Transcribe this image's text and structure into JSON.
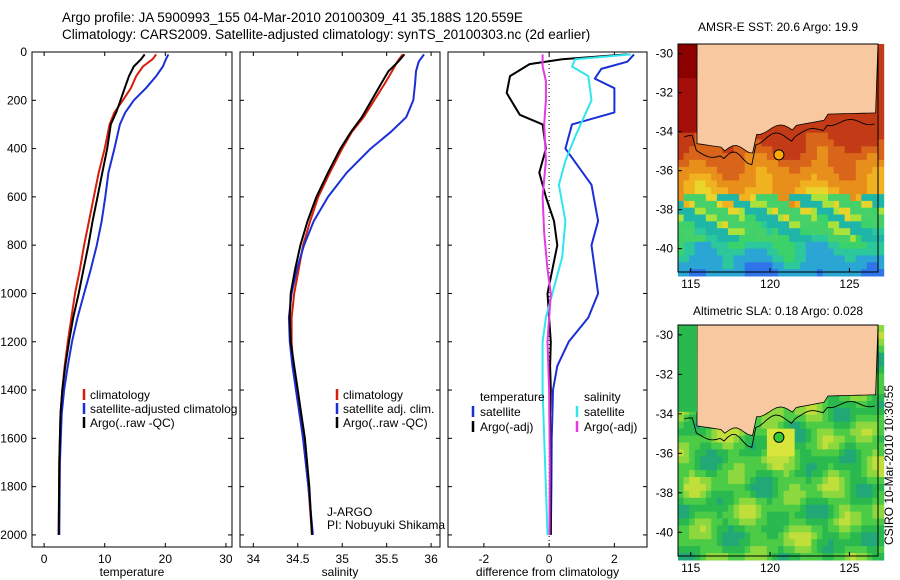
{
  "header": {
    "line1": "Argo profile: JA 5900993_155 04-Mar-2010 20100309_41 35.188S 120.559E",
    "line2": "Climatology: CARS2009. Satellite-adjusted climatology: synTS_20100303.nc (2d earlier)"
  },
  "colors": {
    "climatology": "#d61e0a",
    "satellite": "#1a2fd6",
    "argo": "#000000",
    "salinity_sat": "#2fe6ee",
    "salinity_argo": "#e13be1",
    "land": "#f8c9a0"
  },
  "chart_data": [
    {
      "type": "line",
      "title": "",
      "xlabel": "temperature",
      "ylabel": "",
      "xlim": [
        -2,
        31
      ],
      "ylim": [
        2050,
        0
      ],
      "xticks": [
        0,
        10,
        20,
        30
      ],
      "yticks": [
        0,
        200,
        400,
        600,
        800,
        1000,
        1200,
        1400,
        1600,
        1800,
        2000
      ],
      "legend": [
        "climatology",
        "satellite-adjusted climatolog",
        "Argo(..raw -QC)"
      ],
      "series": [
        {
          "name": "climatology",
          "color": "#d61e0a",
          "x": [
            18.5,
            17.9,
            16.3,
            15.2,
            14.3,
            13.0,
            11.6,
            10.8,
            10.0,
            9.0,
            8.2,
            7.4,
            6.6,
            5.9,
            5.1,
            4.5,
            3.9,
            3.4,
            3.0,
            2.7,
            2.5,
            2.4
          ],
          "y": [
            10,
            30,
            60,
            100,
            150,
            200,
            250,
            300,
            400,
            500,
            600,
            700,
            800,
            900,
            1000,
            1100,
            1200,
            1300,
            1400,
            1500,
            1700,
            2000
          ]
        },
        {
          "name": "satellite-adjusted climatolog",
          "color": "#1a2fd6",
          "x": [
            20.5,
            20.1,
            19.6,
            18.5,
            16.8,
            14.8,
            13.4,
            12.5,
            11.6,
            10.6,
            10.1,
            9.5,
            8.7,
            7.7,
            6.6,
            5.5,
            4.6,
            3.9,
            3.3,
            2.9,
            2.6,
            2.5
          ],
          "y": [
            10,
            30,
            60,
            100,
            150,
            200,
            250,
            300,
            400,
            500,
            600,
            700,
            800,
            900,
            1000,
            1100,
            1200,
            1300,
            1400,
            1500,
            1700,
            2000
          ]
        },
        {
          "name": "Argo(..raw -QC)",
          "color": "#000000",
          "x": [
            16.6,
            16.0,
            14.8,
            14.0,
            13.3,
            12.6,
            11.9,
            11.0,
            10.4,
            9.6,
            8.8,
            8.0,
            7.3,
            6.5,
            5.7,
            4.8,
            4.1,
            3.5,
            3.0,
            2.7,
            2.5,
            2.4
          ],
          "y": [
            10,
            30,
            60,
            100,
            150,
            200,
            250,
            300,
            400,
            500,
            600,
            700,
            800,
            900,
            1000,
            1100,
            1200,
            1300,
            1400,
            1500,
            1700,
            2000
          ]
        }
      ]
    },
    {
      "type": "line",
      "title": "",
      "xlabel": "salinity",
      "ylabel": "",
      "xlim": [
        33.85,
        36.1
      ],
      "ylim": [
        2050,
        0
      ],
      "xticks": [
        34,
        34.5,
        35,
        35.5,
        36
      ],
      "legend": [
        "climatology",
        "satellite adj. clim.",
        "Argo(..raw -QC)"
      ],
      "annotation": [
        "J-ARGO",
        "PI: Nobuyuki Shikama"
      ],
      "series": [
        {
          "name": "climatology",
          "color": "#d61e0a",
          "x": [
            35.68,
            35.62,
            35.56,
            35.48,
            35.36,
            35.24,
            35.11,
            35.0,
            34.86,
            34.73,
            34.64,
            34.56,
            34.51,
            34.46,
            34.43,
            34.43,
            34.45,
            34.48,
            34.52,
            34.56,
            34.62,
            34.66
          ],
          "y": [
            10,
            40,
            80,
            130,
            200,
            270,
            330,
            400,
            500,
            600,
            700,
            800,
            900,
            1000,
            1100,
            1200,
            1300,
            1400,
            1500,
            1600,
            1800,
            2000
          ]
        },
        {
          "name": "satellite adj. clim.",
          "color": "#1a2fd6",
          "x": [
            35.92,
            35.86,
            35.83,
            35.82,
            35.8,
            35.72,
            35.55,
            35.32,
            35.05,
            34.84,
            34.68,
            34.57,
            34.49,
            34.43,
            34.4,
            34.41,
            34.44,
            34.48,
            34.52,
            34.56,
            34.62,
            34.67
          ],
          "y": [
            10,
            40,
            80,
            130,
            200,
            270,
            330,
            400,
            500,
            600,
            700,
            800,
            900,
            1000,
            1100,
            1200,
            1300,
            1400,
            1500,
            1600,
            1800,
            2000
          ]
        },
        {
          "name": "Argo(..raw -QC)",
          "color": "#000000",
          "x": [
            35.7,
            35.63,
            35.52,
            35.44,
            35.33,
            35.22,
            35.1,
            34.98,
            34.84,
            34.71,
            34.61,
            34.53,
            34.47,
            34.42,
            34.41,
            34.42,
            34.46,
            34.5,
            34.54,
            34.58,
            34.63,
            34.66
          ],
          "y": [
            10,
            40,
            80,
            130,
            200,
            270,
            330,
            400,
            500,
            600,
            700,
            800,
            900,
            1000,
            1100,
            1200,
            1300,
            1400,
            1500,
            1600,
            1800,
            2000
          ]
        }
      ]
    },
    {
      "type": "line",
      "title": "",
      "xlabel": "difference from climatology",
      "ylabel": "",
      "xlim": [
        -3.1,
        3.0
      ],
      "ylim": [
        2050,
        0
      ],
      "xticks": [
        -2,
        0,
        2
      ],
      "legend": [
        "temperature",
        "satellite",
        "Argo(-adj)",
        "salinity",
        "satellite",
        "Argo(-adj)"
      ],
      "series": [
        {
          "name": "satellite",
          "color": "#1a2fd6",
          "x": [
            2.6,
            2.4,
            1.6,
            1.4,
            2.0,
            2.0,
            0.7,
            0.5,
            1.3,
            1.5,
            1.3,
            1.4,
            1.5,
            1.2,
            0.6,
            0.25,
            0.12,
            0.1,
            0.08,
            0.07,
            0.05
          ],
          "y": [
            10,
            40,
            70,
            110,
            150,
            250,
            300,
            400,
            550,
            700,
            800,
            900,
            1000,
            1100,
            1200,
            1300,
            1400,
            1500,
            1600,
            1800,
            2000
          ]
        },
        {
          "name": "Argo(-adj)",
          "color": "#000000",
          "x": [
            2.4,
            0.4,
            -0.6,
            -1.2,
            -1.3,
            -0.9,
            -0.2,
            -0.1,
            -0.3,
            -0.1,
            0.15,
            0.25,
            0.1,
            -0.05,
            0.0,
            0.05,
            0.03,
            0.05,
            0.03,
            0.04,
            0.05
          ],
          "y": [
            10,
            30,
            50,
            100,
            170,
            260,
            300,
            400,
            500,
            600,
            700,
            800,
            900,
            1000,
            1100,
            1200,
            1300,
            1400,
            1500,
            1800,
            2000
          ]
        },
        {
          "name": "satellite",
          "color": "#2fe6ee",
          "x": [
            2.5,
            0.8,
            0.7,
            1.2,
            1.3,
            0.8,
            0.5,
            0.3,
            0.5,
            0.4,
            0.1,
            -0.1,
            -0.2,
            -0.2,
            -0.15,
            -0.1,
            -0.05
          ],
          "y": [
            10,
            30,
            60,
            100,
            200,
            350,
            450,
            550,
            700,
            850,
            1000,
            1100,
            1200,
            1400,
            1600,
            1800,
            2000
          ]
        },
        {
          "name": "Argo(-adj)",
          "color": "#e13be1",
          "x": [
            -0.2,
            -0.2,
            -0.1,
            -0.1,
            -0.15,
            -0.1,
            -0.2,
            -0.15,
            -0.05,
            0.05,
            -0.05,
            0.0,
            0.02,
            0.01
          ],
          "y": [
            10,
            60,
            120,
            200,
            300,
            450,
            600,
            750,
            900,
            1000,
            1200,
            1400,
            1700,
            2000
          ]
        }
      ]
    }
  ],
  "maps": [
    {
      "title": "AMSR-E SST: 20.6 Argo: 19.9",
      "xlim": [
        114.2,
        126.8
      ],
      "ylim": [
        -41.2,
        -29.5
      ],
      "xticks": [
        115,
        120,
        125
      ],
      "yticks": [
        -30,
        -32,
        -34,
        -36,
        -38,
        -40
      ],
      "marker": {
        "lon": 120.559,
        "lat": -35.188,
        "color": "#ffaa00"
      },
      "field": "sst"
    },
    {
      "title": "Altimetric SLA: 0.18 Argo: 0.028",
      "xlim": [
        114.2,
        126.8
      ],
      "ylim": [
        -41.2,
        -29.5
      ],
      "xticks": [
        115,
        120,
        125
      ],
      "yticks": [
        -30,
        -32,
        -34,
        -36,
        -38,
        -40
      ],
      "marker": {
        "lon": 120.559,
        "lat": -35.188,
        "color": "#33cc33"
      },
      "field": "sla"
    }
  ],
  "credit": "CSIRO 10-Mar-2010 10:30:55"
}
